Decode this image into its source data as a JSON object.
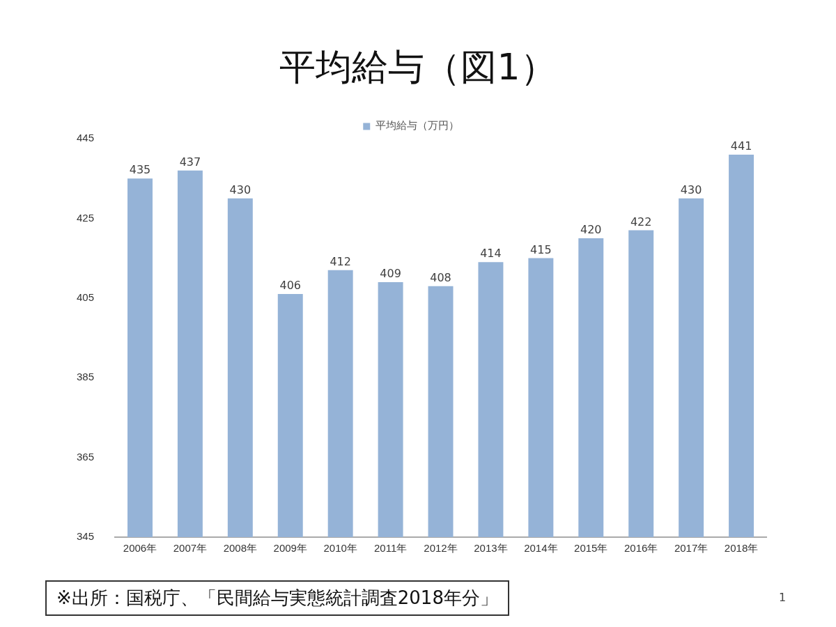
{
  "chart_data": {
    "type": "bar",
    "title": "平均給与（図1）",
    "categories": [
      "2006年",
      "2007年",
      "2008年",
      "2009年",
      "2010年",
      "2011年",
      "2012年",
      "2013年",
      "2014年",
      "2015年",
      "2016年",
      "2017年",
      "2018年"
    ],
    "series": [
      {
        "name": "平均給与（万円）",
        "color": "#95b3d7",
        "values": [
          435,
          437,
          430,
          406,
          412,
          409,
          408,
          414,
          415,
          420,
          422,
          430,
          441
        ]
      }
    ],
    "ylim": [
      345,
      445
    ],
    "yticks": [
      345,
      365,
      385,
      405,
      425,
      445
    ],
    "grid": false,
    "legend": "top",
    "data_labels": true,
    "annotations": [
      "※出所：国税庁、「民間給与実態統計調査2018年分」",
      "1"
    ]
  }
}
